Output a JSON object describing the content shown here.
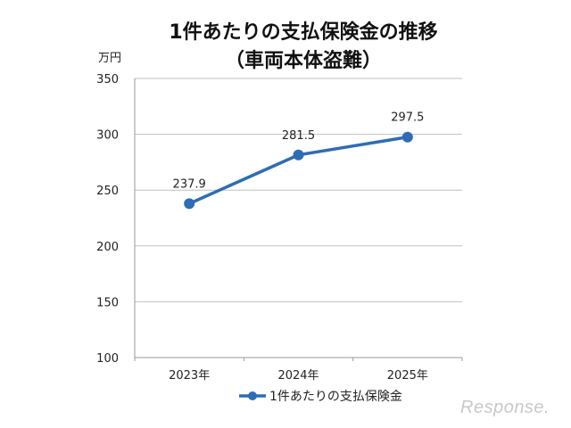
{
  "title": {
    "line1": "1件あたりの支払保険金の推移",
    "line2": "（車両本体盗難）"
  },
  "y_unit": "万円",
  "watermark": "Response.",
  "colors": {
    "series": "#2e6db4",
    "grid": "#bfbfbf",
    "axis": "#999999"
  },
  "chart_data": {
    "type": "line",
    "title": "1件あたりの支払保険金の推移（車両本体盗難）",
    "xlabel": "",
    "ylabel": "万円",
    "categories": [
      "2023年",
      "2024年",
      "2025年"
    ],
    "series": [
      {
        "name": "1件あたりの支払保険金",
        "values": [
          237.9,
          281.5,
          297.5
        ]
      }
    ],
    "data_labels": [
      "237.9",
      "281.5",
      "297.5"
    ],
    "ylim": [
      100,
      350
    ],
    "yticks": [
      100,
      150,
      200,
      250,
      300,
      350
    ],
    "grid": true,
    "legend_position": "bottom"
  }
}
